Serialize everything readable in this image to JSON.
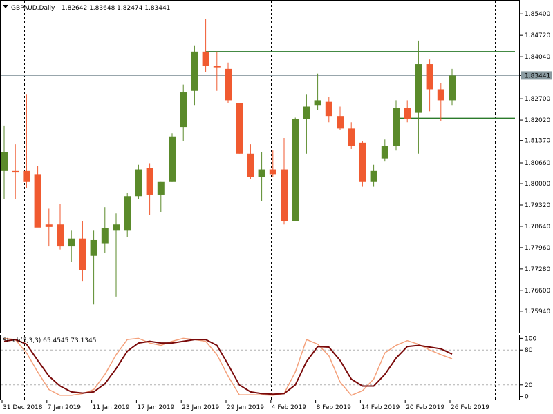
{
  "header": {
    "symbol_timeframe": "GBPAUD,Daily",
    "ohlc": "1.82642 1.83648 1.82474 1.83441",
    "dropdown_icon": "triangle-down-icon"
  },
  "colors": {
    "bull": "#5a8a2a",
    "bear": "#f05a30",
    "axis": "#000000",
    "vline": "#000000",
    "level": "#2a7a2a",
    "price_line": "#8a9aa0",
    "stoch_main": "#f4a07a",
    "stoch_signal": "#7a0a0a"
  },
  "chart_data": [
    {
      "type": "candlestick",
      "title": "GBPAUD,Daily",
      "ylim": [
        1.753,
        1.858
      ],
      "y_ticks": [
        "1.85400",
        "1.84720",
        "1.84040",
        "1.83441",
        "1.82700",
        "1.82020",
        "1.81370",
        "1.80660",
        "1.80000",
        "1.79320",
        "1.78640",
        "1.77960",
        "1.77280",
        "1.76600",
        "1.75940"
      ],
      "current_price": "1.83441",
      "x_labels": [
        "31 Dec 2018",
        "7 Jan 2019",
        "11 Jan 2019",
        "17 Jan 2019",
        "23 Jan 2019",
        "29 Jan 2019",
        "4 Feb 2019",
        "8 Feb 2019",
        "14 Feb 2019",
        "20 Feb 2019",
        "26 Feb 2019"
      ],
      "x_label_index": [
        0,
        4,
        8,
        12,
        16,
        20,
        24,
        28,
        32,
        36,
        40
      ],
      "period_separators": [
        1,
        23,
        43
      ],
      "levels": [
        {
          "price": 1.842,
          "from": 18,
          "to": 45
        },
        {
          "price": 1.8208,
          "from": 35,
          "to": 45
        }
      ],
      "candles": [
        {
          "o": 1.804,
          "h": 1.8185,
          "l": 1.795,
          "c": 1.81
        },
        {
          "o": 1.804,
          "h": 1.8125,
          "l": 1.795,
          "c": 1.8035
        },
        {
          "o": 1.804,
          "h": 1.8285,
          "l": 1.7985,
          "c": 1.8005
        },
        {
          "o": 1.803,
          "h": 1.8055,
          "l": 1.787,
          "c": 1.786
        },
        {
          "o": 1.787,
          "h": 1.792,
          "l": 1.78,
          "c": 1.7862
        },
        {
          "o": 1.787,
          "h": 1.7935,
          "l": 1.779,
          "c": 1.78
        },
        {
          "o": 1.78,
          "h": 1.785,
          "l": 1.775,
          "c": 1.7825
        },
        {
          "o": 1.7825,
          "h": 1.788,
          "l": 1.769,
          "c": 1.7725
        },
        {
          "o": 1.777,
          "h": 1.785,
          "l": 1.7615,
          "c": 1.782
        },
        {
          "o": 1.781,
          "h": 1.7925,
          "l": 1.778,
          "c": 1.7858
        },
        {
          "o": 1.785,
          "h": 1.7905,
          "l": 1.764,
          "c": 1.787
        },
        {
          "o": 1.785,
          "h": 1.797,
          "l": 1.783,
          "c": 1.796
        },
        {
          "o": 1.796,
          "h": 1.806,
          "l": 1.795,
          "c": 1.8045
        },
        {
          "o": 1.805,
          "h": 1.8065,
          "l": 1.79,
          "c": 1.7965
        },
        {
          "o": 1.7965,
          "h": 1.8005,
          "l": 1.791,
          "c": 1.8005
        },
        {
          "o": 1.8005,
          "h": 1.816,
          "l": 1.8005,
          "c": 1.815
        },
        {
          "o": 1.818,
          "h": 1.8315,
          "l": 1.8135,
          "c": 1.829
        },
        {
          "o": 1.8295,
          "h": 1.844,
          "l": 1.825,
          "c": 1.842
        },
        {
          "o": 1.842,
          "h": 1.8525,
          "l": 1.8355,
          "c": 1.8375
        },
        {
          "o": 1.8375,
          "h": 1.842,
          "l": 1.8295,
          "c": 1.837
        },
        {
          "o": 1.8365,
          "h": 1.8385,
          "l": 1.8255,
          "c": 1.8265
        },
        {
          "o": 1.8255,
          "h": 1.8255,
          "l": 1.8095,
          "c": 1.8095
        },
        {
          "o": 1.8095,
          "h": 1.8125,
          "l": 1.8015,
          "c": 1.802
        },
        {
          "o": 1.802,
          "h": 1.81,
          "l": 1.7945,
          "c": 1.8045
        },
        {
          "o": 1.8045,
          "h": 1.8105,
          "l": 1.802,
          "c": 1.803
        },
        {
          "o": 1.8045,
          "h": 1.8145,
          "l": 1.787,
          "c": 1.788
        },
        {
          "o": 1.788,
          "h": 1.821,
          "l": 1.788,
          "c": 1.8205
        },
        {
          "o": 1.8205,
          "h": 1.8285,
          "l": 1.8095,
          "c": 1.8245
        },
        {
          "o": 1.825,
          "h": 1.835,
          "l": 1.8235,
          "c": 1.8265
        },
        {
          "o": 1.826,
          "h": 1.8275,
          "l": 1.8195,
          "c": 1.8215
        },
        {
          "o": 1.8215,
          "h": 1.8245,
          "l": 1.817,
          "c": 1.8175
        },
        {
          "o": 1.8175,
          "h": 1.8195,
          "l": 1.811,
          "c": 1.812
        },
        {
          "o": 1.813,
          "h": 1.8135,
          "l": 1.799,
          "c": 1.8005
        },
        {
          "o": 1.8005,
          "h": 1.806,
          "l": 1.799,
          "c": 1.804
        },
        {
          "o": 1.808,
          "h": 1.814,
          "l": 1.807,
          "c": 1.812
        },
        {
          "o": 1.812,
          "h": 1.8265,
          "l": 1.8105,
          "c": 1.824
        },
        {
          "o": 1.824,
          "h": 1.8265,
          "l": 1.8195,
          "c": 1.8205
        },
        {
          "o": 1.8225,
          "h": 1.8455,
          "l": 1.8095,
          "c": 1.838
        },
        {
          "o": 1.838,
          "h": 1.8395,
          "l": 1.823,
          "c": 1.83
        },
        {
          "o": 1.83,
          "h": 1.832,
          "l": 1.82,
          "c": 1.8265
        },
        {
          "o": 1.8265,
          "h": 1.8365,
          "l": 1.825,
          "c": 1.8344
        }
      ]
    },
    {
      "type": "line",
      "title": "Stoch(5,3,3) 65.4545 73.1345",
      "ylim": [
        -4,
        104
      ],
      "y_ticks": [
        "100",
        "80",
        "20",
        "0"
      ],
      "levels": [
        80,
        20
      ],
      "series": [
        {
          "values": [
            100,
            98,
            75,
            42,
            12,
            2,
            2,
            5,
            12,
            38,
            72,
            98,
            100,
            92,
            88,
            95,
            100,
            98,
            95,
            72,
            35,
            3,
            3,
            3,
            2,
            5,
            42,
            98,
            90,
            70,
            25,
            2,
            10,
            30,
            75,
            88,
            96,
            90,
            80,
            72,
            65
          ]
        },
        {
          "values": [
            95,
            98,
            90,
            62,
            35,
            18,
            8,
            6,
            8,
            22,
            48,
            78,
            92,
            95,
            92,
            92,
            95,
            98,
            98,
            88,
            55,
            20,
            8,
            5,
            4,
            5,
            20,
            60,
            86,
            85,
            62,
            30,
            18,
            18,
            38,
            66,
            86,
            88,
            85,
            82,
            73
          ]
        }
      ]
    }
  ]
}
